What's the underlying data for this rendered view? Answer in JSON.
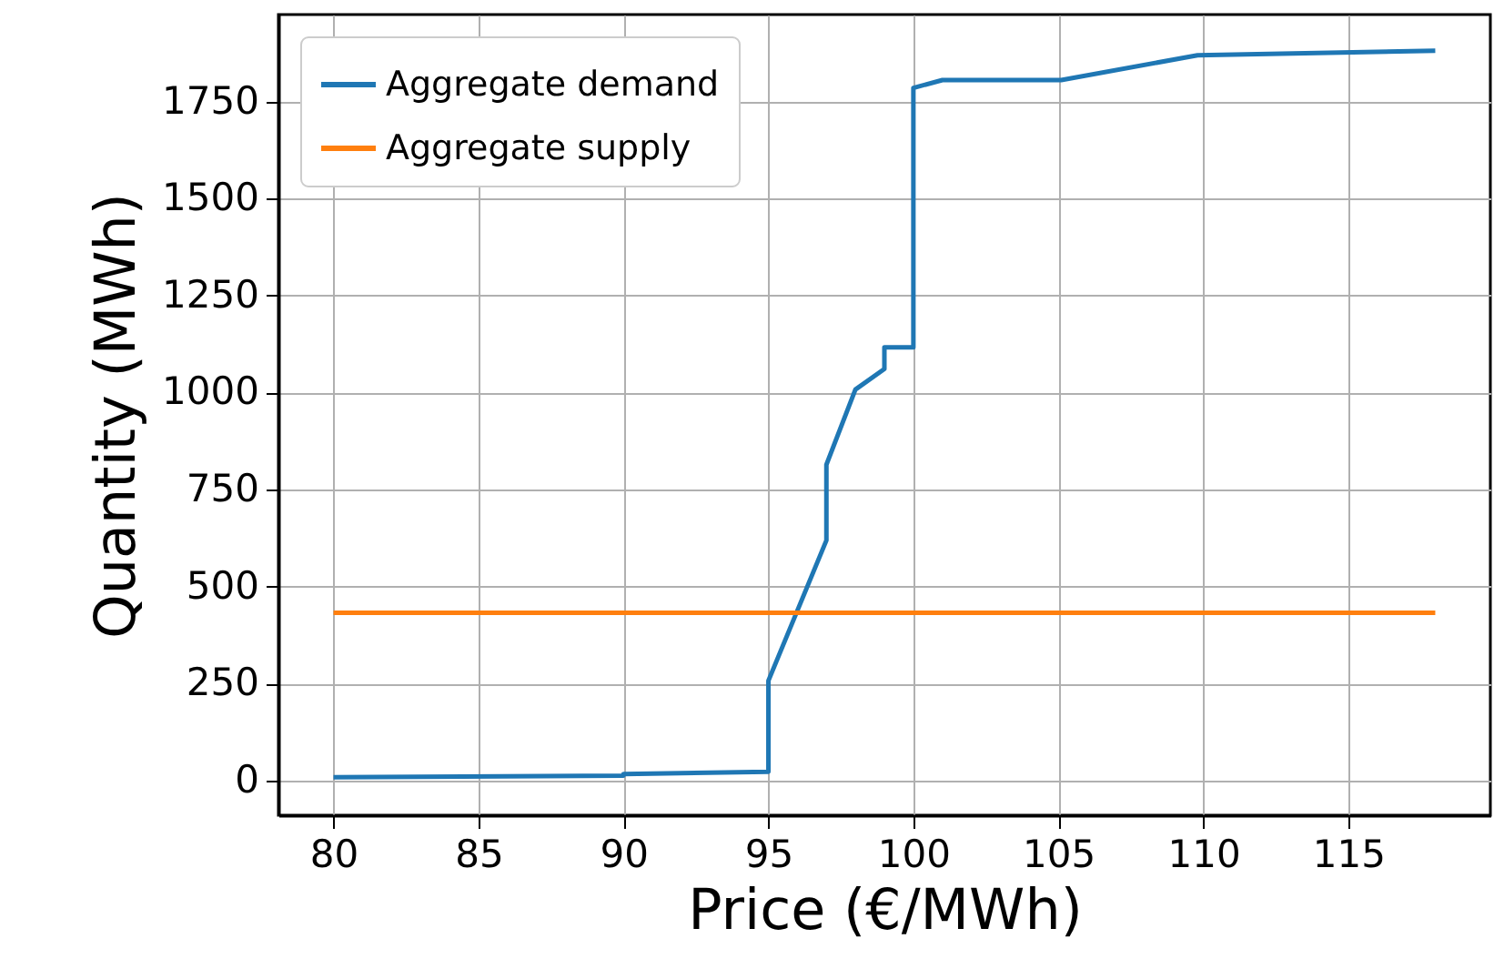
{
  "chart_data": {
    "type": "line",
    "xlabel": "Price (€/MWh)",
    "ylabel": "Quantity (MWh)",
    "xlim": [
      78.1,
      119.9
    ],
    "ylim": [
      -90,
      1975
    ],
    "xticks": [
      80,
      85,
      90,
      95,
      100,
      105,
      110,
      115
    ],
    "yticks": [
      0,
      250,
      500,
      750,
      1000,
      1250,
      1500,
      1750
    ],
    "grid": true,
    "legend": "top left",
    "line_style": "solid",
    "marker": "none",
    "series": [
      {
        "name": "Aggregate demand",
        "color": "#1f77b4",
        "x": [
          80,
          90,
          90,
          95,
          95,
          97,
          97,
          98,
          99,
          99,
          100,
          100,
          101,
          105.1,
          109.8,
          118
        ],
        "values": [
          8,
          12,
          16,
          22,
          257,
          619,
          814,
          1008,
          1061,
          1117,
          1117,
          1786,
          1806,
          1806,
          1870,
          1882
        ]
      },
      {
        "name": "Aggregate supply",
        "color": "#ff7f0e",
        "x": [
          80,
          118
        ],
        "values": [
          432,
          432
        ]
      }
    ]
  }
}
